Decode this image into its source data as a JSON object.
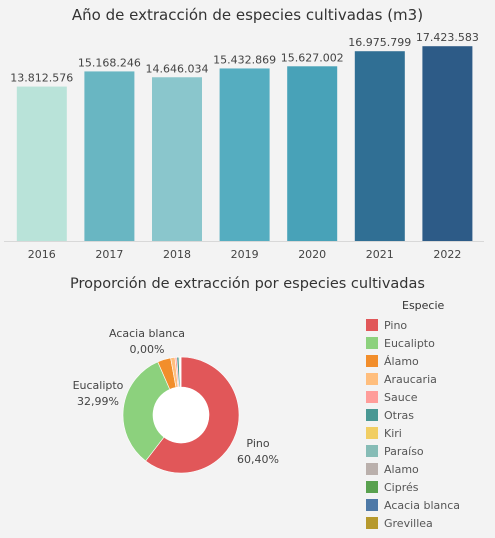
{
  "chart_data": [
    {
      "type": "bar",
      "title": "Año de extracción de especies cultivadas (m3)",
      "categories": [
        "2016",
        "2017",
        "2018",
        "2019",
        "2020",
        "2021",
        "2022"
      ],
      "values": [
        13812576,
        15168246,
        14646034,
        15432869,
        15627002,
        16975799,
        17423583
      ],
      "value_labels": [
        "13.812.576",
        "15.168.246",
        "14.646.034",
        "15.432.869",
        "15.627.002",
        "16.975.799",
        "17.423.583"
      ],
      "colors": [
        "#b9e3d9",
        "#69b6c2",
        "#8ac6cc",
        "#55adc0",
        "#48a2b8",
        "#306f94",
        "#2d5b87"
      ],
      "ylim": [
        0,
        17800000
      ],
      "grid": false
    },
    {
      "type": "pie",
      "title": "Proporción de extracción por especies cultivadas",
      "legend_title": "Especie",
      "legend_position": "right",
      "slices": [
        {
          "label": "Pino",
          "value": 60.4,
          "value_label": "60,40%",
          "color": "#e15759"
        },
        {
          "label": "Eucalipto",
          "value": 32.99,
          "value_label": "32,99%",
          "color": "#8cd17d"
        },
        {
          "label": "Álamo",
          "value": 3.7,
          "color": "#f28e2b"
        },
        {
          "label": "Araucaria",
          "value": 1.2,
          "color": "#ffbe7d"
        },
        {
          "label": "Sauce",
          "value": 0.5,
          "color": "#ff9d9a"
        },
        {
          "label": "Otras",
          "value": 0.6,
          "color": "#499894"
        },
        {
          "label": "Kiri",
          "value": 0.25,
          "color": "#f1ce63"
        },
        {
          "label": "Paraíso",
          "value": 0.15,
          "color": "#86bcb6"
        },
        {
          "label": "Alamo",
          "value": 0.1,
          "color": "#bab0ac"
        },
        {
          "label": "Ciprés",
          "value": 0.06,
          "color": "#59a14f"
        },
        {
          "label": "Acacia blanca",
          "value": 0.0,
          "value_label": "0,00%",
          "color": "#4e79a7"
        },
        {
          "label": "Grevillea",
          "value": 0.0,
          "color": "#b6992d"
        }
      ]
    }
  ]
}
